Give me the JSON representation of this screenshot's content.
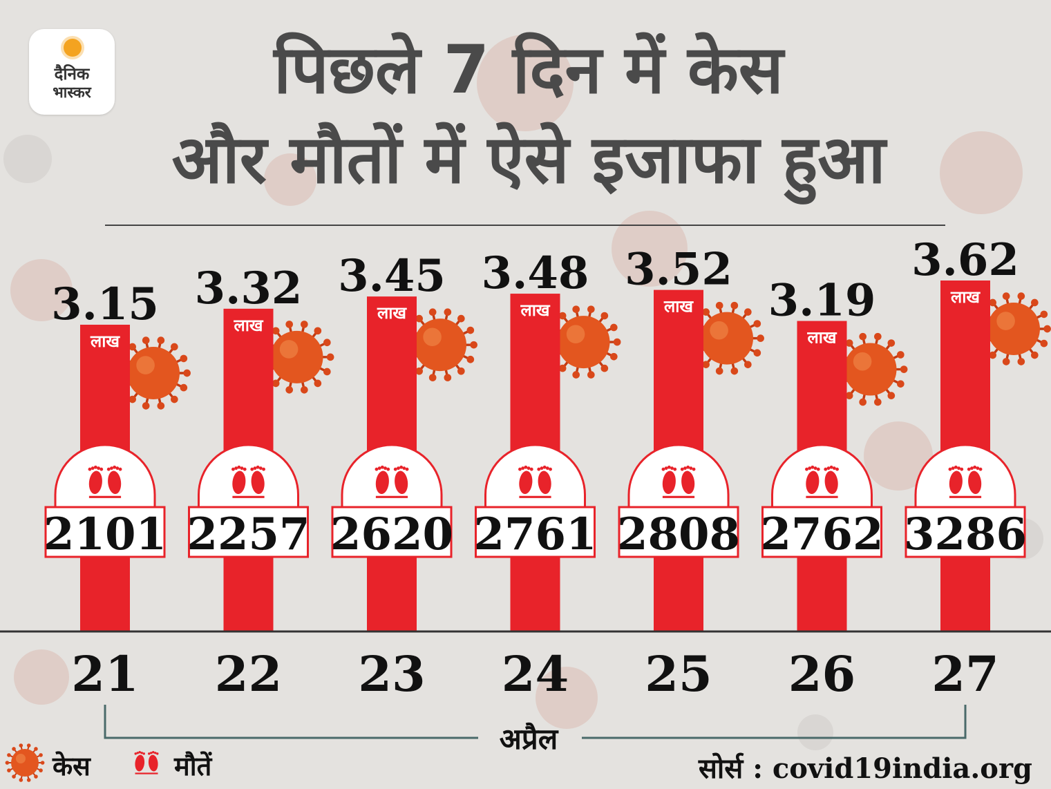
{
  "logo": {
    "line1": "दैनिक",
    "line2": "भास्कर"
  },
  "title": {
    "line1": "पिछले 7 दिन में केस",
    "line2": "और मौतों में ऐसे इजाफा हुआ"
  },
  "chart_data": {
    "type": "bar",
    "categories": [
      "21",
      "22",
      "23",
      "24",
      "25",
      "26",
      "27"
    ],
    "series": [
      {
        "name": "केस",
        "values": [
          3.15,
          3.32,
          3.45,
          3.48,
          3.52,
          3.19,
          3.62
        ],
        "unit": "लाख"
      },
      {
        "name": "मौतें",
        "values": [
          2101,
          2257,
          2620,
          2761,
          2808,
          2762,
          3286
        ]
      }
    ],
    "xlabel": "अप्रैल",
    "legend": {
      "position": "bottom-left",
      "items": [
        "केस",
        "मौतें"
      ]
    },
    "source": "सोर्स : covid19india.org",
    "colors": {
      "bar": "#e8232a",
      "text": "#111111",
      "title": "#4a4a4a",
      "virus": "#e3561f"
    }
  }
}
